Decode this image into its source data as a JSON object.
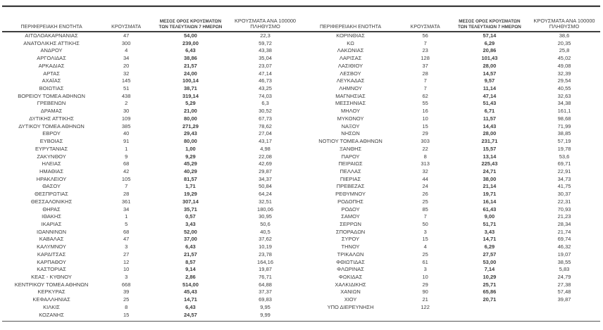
{
  "colors": {
    "rule": "#3f3f3f",
    "text": "#3d3d3d",
    "background": "#ffffff"
  },
  "headers": {
    "region": "ΠΕΡΙΦΕΡΕΙΑΚΗ ΕΝΟΤΗΤΑ",
    "cases": "ΚΡΟΥΣΜΑΤΑ",
    "avg_7day_line1": "ΜΕΣΟΣ ΟΡΟΣ ΚΡΟΥΣΜΑΤΩΝ",
    "avg_7day_line2": "ΤΩΝ ΤΕΛΕΥΤΑΙΩΝ 7 ΗΜΕΡΩΝ",
    "per_100k_line1": "ΚΡΟΥΣΜΑΤΑ ΑΝΑ 100000",
    "per_100k_line2": "ΠΛΗΘΥΣΜΟ"
  },
  "left_table": {
    "rows": [
      [
        "ΑΙΤΩΛΟΑΚΑΡΝΑΝΙΑΣ",
        "47",
        "54,00",
        "22,3"
      ],
      [
        "ΑΝΑΤΟΛΙΚΗΣ ΑΤΤΙΚΗΣ",
        "300",
        "239,00",
        "59,72"
      ],
      [
        "ΑΝΔΡΟΥ",
        "4",
        "6,43",
        "43,38"
      ],
      [
        "ΑΡΓΟΛΙΔΑΣ",
        "34",
        "38,86",
        "35,04"
      ],
      [
        "ΑΡΚΑΔΙΑΣ",
        "20",
        "21,57",
        "23,07"
      ],
      [
        "ΑΡΤΑΣ",
        "32",
        "24,00",
        "47,14"
      ],
      [
        "ΑΧΑΪΑΣ",
        "145",
        "100,14",
        "46,73"
      ],
      [
        "ΒΟΙΩΤΙΑΣ",
        "51",
        "38,71",
        "43,25"
      ],
      [
        "ΒΟΡΕΙΟΥ ΤΟΜΕΑ ΑΘΗΝΩΝ",
        "438",
        "319,14",
        "74,03"
      ],
      [
        "ΓΡΕΒΕΝΩΝ",
        "2",
        "5,29",
        "6,3"
      ],
      [
        "ΔΡΑΜΑΣ",
        "30",
        "21,00",
        "30,52"
      ],
      [
        "ΔΥΤΙΚΗΣ ΑΤΤΙΚΗΣ",
        "109",
        "80,00",
        "67,73"
      ],
      [
        "ΔΥΤΙΚΟΥ ΤΟΜΕΑ ΑΘΗΝΩΝ",
        "385",
        "271,29",
        "78,62"
      ],
      [
        "ΕΒΡΟΥ",
        "40",
        "29,43",
        "27,04"
      ],
      [
        "ΕΥΒΟΙΑΣ",
        "91",
        "80,00",
        "43,17"
      ],
      [
        "ΕΥΡΥΤΑΝΙΑΣ",
        "1",
        "1,00",
        "4,98"
      ],
      [
        "ΖΑΚΥΝΘΟΥ",
        "9",
        "9,29",
        "22,08"
      ],
      [
        "ΗΛΕΙΑΣ",
        "68",
        "45,29",
        "42,69"
      ],
      [
        "ΗΜΑΘΙΑΣ",
        "42",
        "40,29",
        "29,87"
      ],
      [
        "ΗΡΑΚΛΕΙΟΥ",
        "105",
        "81,57",
        "34,37"
      ],
      [
        "ΘΑΣΟΥ",
        "7",
        "1,71",
        "50,84"
      ],
      [
        "ΘΕΣΠΡΩΤΙΑΣ",
        "28",
        "19,29",
        "64,24"
      ],
      [
        "ΘΕΣΣΑΛΟΝΙΚΗΣ",
        "361",
        "307,14",
        "32,51"
      ],
      [
        "ΘΗΡΑΣ",
        "34",
        "35,71",
        "180,06"
      ],
      [
        "ΙΘΑΚΗΣ",
        "1",
        "0,57",
        "30,95"
      ],
      [
        "ΙΚΑΡΙΑΣ",
        "5",
        "3,43",
        "50,6"
      ],
      [
        "ΙΩΑΝΝΙΝΩΝ",
        "68",
        "52,00",
        "40,5"
      ],
      [
        "ΚΑΒΑΛΑΣ",
        "47",
        "37,00",
        "37,62"
      ],
      [
        "ΚΑΛΥΜΝΟΥ",
        "3",
        "6,43",
        "10,19"
      ],
      [
        "ΚΑΡΔΙΤΣΑΣ",
        "27",
        "21,57",
        "23,78"
      ],
      [
        "ΚΑΡΠΑΘΟΥ",
        "12",
        "8,57",
        "164,16"
      ],
      [
        "ΚΑΣΤΟΡΙΑΣ",
        "10",
        "9,14",
        "19,87"
      ],
      [
        "ΚΕΑΣ - ΚΥΘΝΟΥ",
        "3",
        "2,86",
        "76,71"
      ],
      [
        "ΚΕΝΤΡΙΚΟΥ ΤΟΜΕΑ ΑΘΗΝΩΝ",
        "668",
        "514,00",
        "64,88"
      ],
      [
        "ΚΕΡΚΥΡΑΣ",
        "39",
        "45,43",
        "37,37"
      ],
      [
        "ΚΕΦΑΛΛΗΝΙΑΣ",
        "25",
        "14,71",
        "69,83"
      ],
      [
        "ΚΙΛΚΙΣ",
        "8",
        "6,43",
        "9,95"
      ],
      [
        "ΚΟΖΑΝΗΣ",
        "15",
        "24,57",
        "9,99"
      ]
    ]
  },
  "right_table": {
    "rows": [
      [
        "ΚΟΡΙΝΘΙΑΣ",
        "56",
        "57,14",
        "38,6"
      ],
      [
        "ΚΩ",
        "7",
        "6,29",
        "20,35"
      ],
      [
        "ΛΑΚΩΝΙΑΣ",
        "23",
        "20,86",
        "25,8"
      ],
      [
        "ΛΑΡΙΣΑΣ",
        "128",
        "101,43",
        "45,02"
      ],
      [
        "ΛΑΣΙΘΙΟΥ",
        "37",
        "28,00",
        "49,08"
      ],
      [
        "ΛΕΣΒΟΥ",
        "28",
        "14,57",
        "32,39"
      ],
      [
        "ΛΕΥΚΑΔΑΣ",
        "7",
        "9,57",
        "29,54"
      ],
      [
        "ΛΗΜΝΟΥ",
        "7",
        "11,14",
        "40,55"
      ],
      [
        "ΜΑΓΝΗΣΙΑΣ",
        "62",
        "47,14",
        "32,63"
      ],
      [
        "ΜΕΣΣΗΝΙΑΣ",
        "55",
        "51,43",
        "34,38"
      ],
      [
        "ΜΗΛΟΥ",
        "16",
        "6,71",
        "161,1"
      ],
      [
        "ΜΥΚΟΝΟΥ",
        "10",
        "11,57",
        "98,68"
      ],
      [
        "ΝΑΞΟΥ",
        "15",
        "14,43",
        "71,99"
      ],
      [
        "ΝΗΣΩΝ",
        "29",
        "28,00",
        "38,85"
      ],
      [
        "ΝΟΤΙΟΥ ΤΟΜΕΑ ΑΘΗΝΩΝ",
        "303",
        "231,71",
        "57,19"
      ],
      [
        "ΞΑΝΘΗΣ",
        "22",
        "15,57",
        "19,78"
      ],
      [
        "ΠΑΡΟΥ",
        "8",
        "13,14",
        "53,6"
      ],
      [
        "ΠΕΙΡΑΙΩΣ",
        "313",
        "225,43",
        "69,71"
      ],
      [
        "ΠΕΛΛΑΣ",
        "32",
        "24,71",
        "22,91"
      ],
      [
        "ΠΙΕΡΙΑΣ",
        "44",
        "38,00",
        "34,73"
      ],
      [
        "ΠΡΕΒΕΖΑΣ",
        "24",
        "21,14",
        "41,75"
      ],
      [
        "ΡΕΘΥΜΝΟΥ",
        "26",
        "19,71",
        "30,37"
      ],
      [
        "ΡΟΔΟΠΗΣ",
        "25",
        "16,14",
        "22,31"
      ],
      [
        "ΡΟΔΟΥ",
        "85",
        "61,43",
        "70,93"
      ],
      [
        "ΣΑΜΟΥ",
        "7",
        "9,00",
        "21,23"
      ],
      [
        "ΣΕΡΡΩΝ",
        "50",
        "51,71",
        "28,34"
      ],
      [
        "ΣΠΟΡΑΔΩΝ",
        "3",
        "3,43",
        "21,74"
      ],
      [
        "ΣΥΡΟΥ",
        "15",
        "14,71",
        "69,74"
      ],
      [
        "ΤΗΝΟΥ",
        "4",
        "6,29",
        "46,32"
      ],
      [
        "ΤΡΙΚΑΛΩΝ",
        "25",
        "27,57",
        "19,07"
      ],
      [
        "ΦΘΙΩΤΙΔΑΣ",
        "61",
        "53,00",
        "38,55"
      ],
      [
        "ΦΛΩΡΙΝΑΣ",
        "3",
        "7,14",
        "5,83"
      ],
      [
        "ΦΩΚΙΔΑΣ",
        "10",
        "10,29",
        "24,79"
      ],
      [
        "ΧΑΛΚΙΔΙΚΗΣ",
        "29",
        "25,71",
        "27,38"
      ],
      [
        "ΧΑΝΙΩΝ",
        "90",
        "65,86",
        "57,48"
      ],
      [
        "ΧΙΟΥ",
        "21",
        "20,71",
        "39,87"
      ],
      [
        "ΥΠΟ ΔΙΕΡΕΥΝΗΣΗ",
        "122",
        "",
        ""
      ]
    ]
  }
}
